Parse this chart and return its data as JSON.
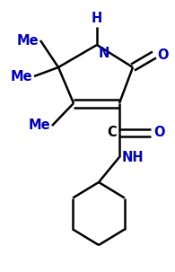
{
  "bg_color": "#ffffff",
  "line_color": "#000000",
  "text_color": "#000000",
  "label_color": "#0000bb",
  "bond_width": 1.8,
  "figsize": [
    1.95,
    3.03
  ],
  "dpi": 100,
  "xlim": [
    0,
    195
  ],
  "ylim": [
    0,
    303
  ]
}
